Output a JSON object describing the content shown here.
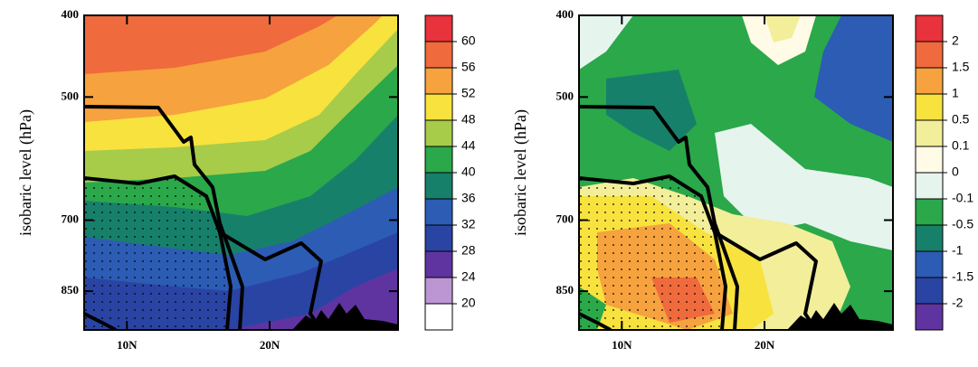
{
  "chart_data": [
    {
      "type": "contour",
      "ylabel": "isobaric level (hPa)",
      "y_log": true,
      "ylim": [
        945,
        400
      ],
      "yticks": [
        400,
        500,
        700,
        850
      ],
      "xlim": [
        7,
        29
      ],
      "xticks": [
        {
          "value": 10,
          "label": "10N"
        },
        {
          "value": 20,
          "label": "20N"
        }
      ],
      "levels": [
        60,
        56,
        52,
        48,
        44,
        40,
        36,
        32,
        28,
        24,
        20
      ],
      "level_colors": [
        "#e8323c",
        "#ef6a3c",
        "#f6a23e",
        "#f8e23e",
        "#a6cc4a",
        "#2aa84a",
        "#17806a",
        "#2c5cb4",
        "#2a44a4",
        "#6034a0",
        "#bc96d2",
        "#ffffff"
      ]
    },
    {
      "type": "contour",
      "ylabel": "isobaric level (hPa)",
      "y_log": true,
      "ylim": [
        945,
        400
      ],
      "yticks": [
        400,
        500,
        700,
        850
      ],
      "xlim": [
        7,
        29
      ],
      "xticks": [
        {
          "value": 10,
          "label": "10N"
        },
        {
          "value": 20,
          "label": "20N"
        }
      ],
      "levels": [
        2,
        1.5,
        1,
        0.5,
        0.1,
        0,
        -0.1,
        -0.5,
        -1,
        -1.5,
        -2
      ],
      "level_colors": [
        "#e8323c",
        "#ef6a3c",
        "#f6a23e",
        "#f8e23e",
        "#f2ee9a",
        "#fffbe6",
        "#e6f4ee",
        "#2aa84a",
        "#17806a",
        "#2c5cb4",
        "#2a44a4",
        "#6034a0"
      ]
    }
  ]
}
